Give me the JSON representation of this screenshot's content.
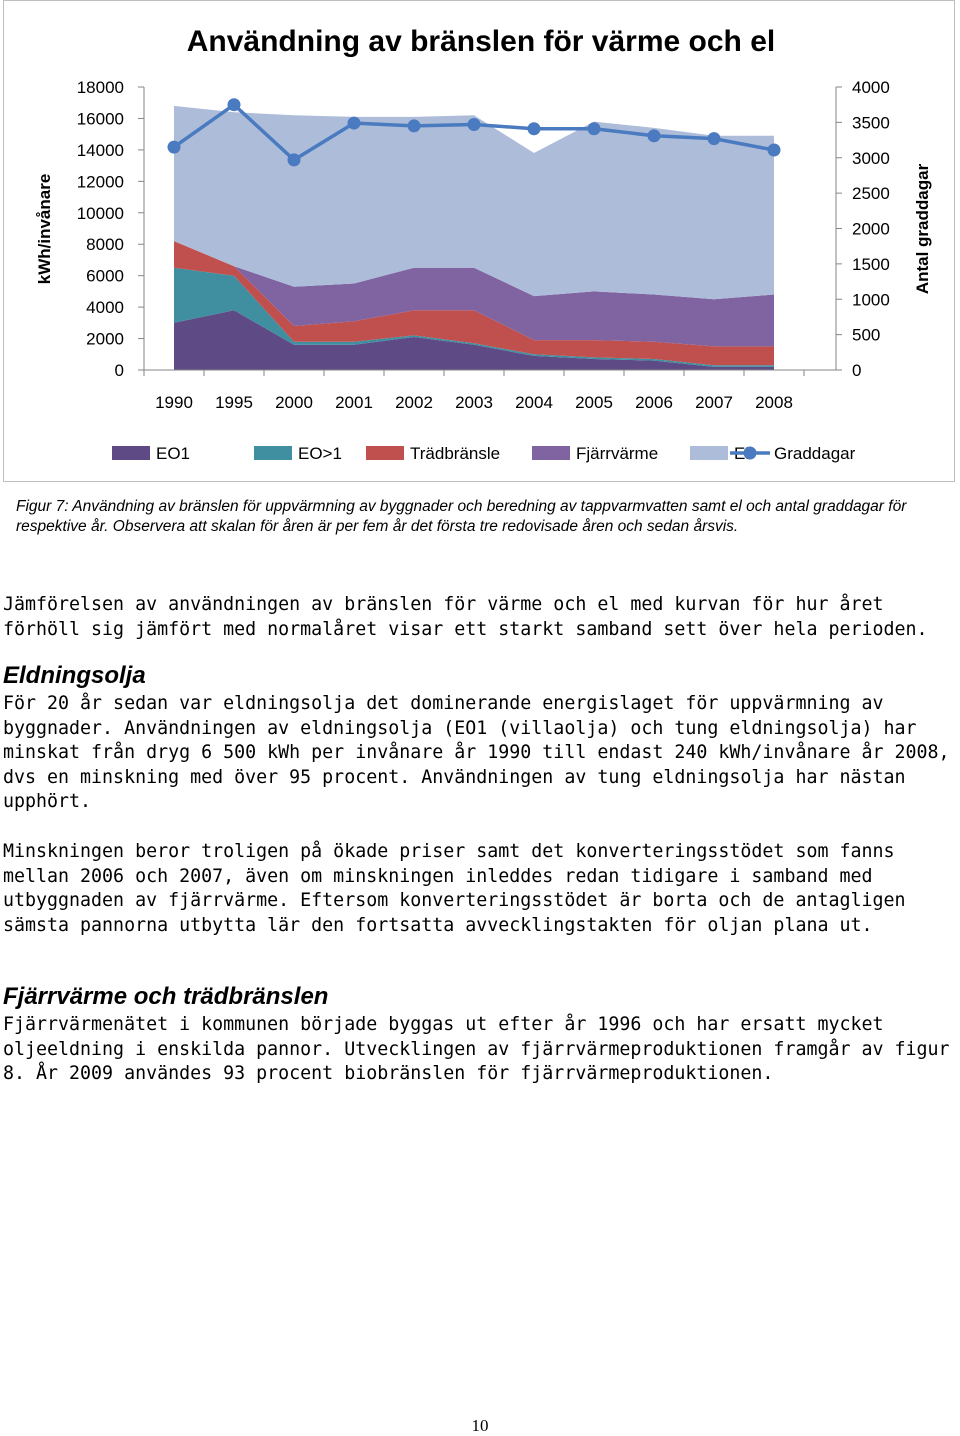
{
  "chart_data": {
    "type": "area",
    "title": "Användning av bränslen för värme och el",
    "ylabel": "kWh/invånare",
    "y2label": "Antal graddagar",
    "categories": [
      "1990",
      "1995",
      "2000",
      "2001",
      "2002",
      "2003",
      "2004",
      "2005",
      "2006",
      "2007",
      "2008"
    ],
    "ylim": [
      0,
      18000
    ],
    "y_ticks": [
      "0",
      "2000",
      "4000",
      "6000",
      "8000",
      "10000",
      "12000",
      "14000",
      "16000",
      "18000"
    ],
    "y2lim": [
      0,
      4000
    ],
    "y2_ticks": [
      "0",
      "500",
      "1000",
      "1500",
      "2000",
      "2500",
      "3000",
      "3500",
      "4000"
    ],
    "stacked": true,
    "series": [
      {
        "name": "EO1",
        "color": "#5e4b85",
        "values": [
          3000,
          3800,
          1600,
          1600,
          2100,
          1600,
          900,
          700,
          600,
          200,
          200
        ]
      },
      {
        "name": "EO>1",
        "color": "#3f8fa1",
        "values": [
          3500,
          2200,
          200,
          200,
          100,
          100,
          100,
          100,
          100,
          100,
          100
        ]
      },
      {
        "name": "Trädbränsle",
        "color": "#c0504d",
        "values": [
          1700,
          600,
          1000,
          1300,
          1600,
          2100,
          900,
          1100,
          1100,
          1200,
          1200
        ]
      },
      {
        "name": "Fjärrvärme",
        "color": "#8064a2",
        "values": [
          0,
          0,
          2500,
          2400,
          2700,
          2700,
          2800,
          3100,
          3000,
          3000,
          3300
        ]
      },
      {
        "name": "El",
        "color": "#adbcd9",
        "values": [
          8600,
          9800,
          10900,
          10600,
          9600,
          9700,
          9100,
          10800,
          10600,
          10400,
          10100
        ]
      }
    ],
    "line_series": {
      "name": "Graddagar",
      "color": "#4a7bc0",
      "axis": "right",
      "values": [
        3150,
        3750,
        2970,
        3490,
        3450,
        3470,
        3410,
        3410,
        3310,
        3270,
        3110
      ]
    },
    "legend": [
      "EO1",
      "EO>1",
      "Trädbränsle",
      "Fjärrvärme",
      "El",
      "Graddagar"
    ],
    "legend_position": "bottom",
    "grid": false
  },
  "caption": "Figur 7: Användning av bränslen för uppvärmning av byggnader och beredning av tappvarmvatten samt el och antal graddagar för respektive år. Observera att skalan för åren är per fem år det första tre redovisade åren och sedan årsvis.",
  "paragraphs": {
    "intro": "Jämförelsen av användningen av bränslen för värme och el  med kurvan för hur året förhöll sig jämfört med normalåret visar ett starkt samband sett över hela perioden.",
    "eldningsolja_1": "För 20 år sedan var eldningsolja det dominerande energislaget för uppvärmning av byggnader. Användningen av eldningsolja (EO1 (villaolja) och tung eldningsolja) har minskat från dryg 6 500 kWh per invånare år 1990 till endast 240 kWh/invånare år 2008, dvs en minskning med över 95 procent. Användningen av tung eldningsolja har nästan upphört.",
    "eldningsolja_2": "Minskningen beror troligen på ökade priser samt det konverteringsstödet som fanns mellan 2006 och 2007, även om minskningen inleddes redan tidigare i samband med utbyggnaden av fjärrvärme. Eftersom konverteringsstödet är borta och de antagligen sämsta pannorna utbytta lär den fortsatta avvecklingstakten för oljan plana ut.",
    "fjarrvarme": "Fjärrvärmenätet i kommunen började byggas ut efter år 1996 och har ersatt mycket oljeeldning i enskilda pannor. Utvecklingen av fjärrvärmeproduktionen framgår av figur 8. År 2009 användes 93 procent biobränslen för fjärrvärmeproduktionen."
  },
  "headings": {
    "eldningsolja": "Eldningsolja",
    "fjarrvarme": "Fjärrvärme och trädbränslen"
  },
  "page_number": "10"
}
